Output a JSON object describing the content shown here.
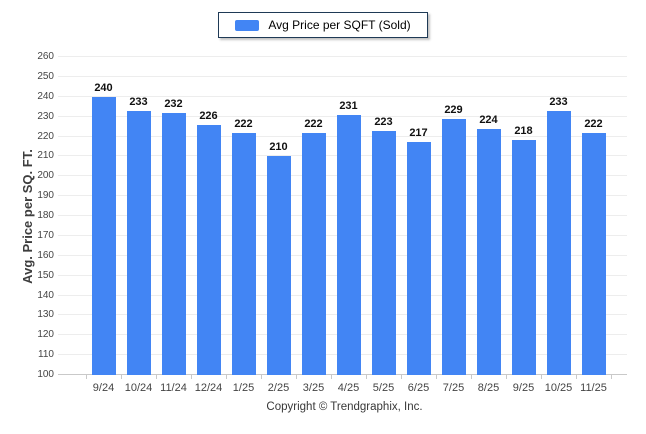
{
  "legend": {
    "label": "Avg Price per SQFT (Sold)",
    "swatch_color": "#4285f4"
  },
  "chart_data": {
    "type": "bar",
    "title": "",
    "categories": [
      "9/24",
      "10/24",
      "11/24",
      "12/24",
      "1/25",
      "2/25",
      "3/25",
      "4/25",
      "5/25",
      "6/25",
      "7/25",
      "8/25",
      "9/25",
      "10/25",
      "11/25"
    ],
    "values": [
      240,
      233,
      232,
      226,
      222,
      210,
      222,
      231,
      223,
      217,
      229,
      224,
      218,
      233,
      222
    ],
    "xlabel": "",
    "ylabel": "Avg. Price per SQ. FT.",
    "ylim": [
      100,
      260
    ],
    "ytick_step": 10,
    "grid": true,
    "legend_position": "top-center",
    "bar_color": "#4285f4",
    "value_labels_shown": true
  },
  "footer": {
    "copyright": "Copyright © Trendgraphix, Inc."
  }
}
